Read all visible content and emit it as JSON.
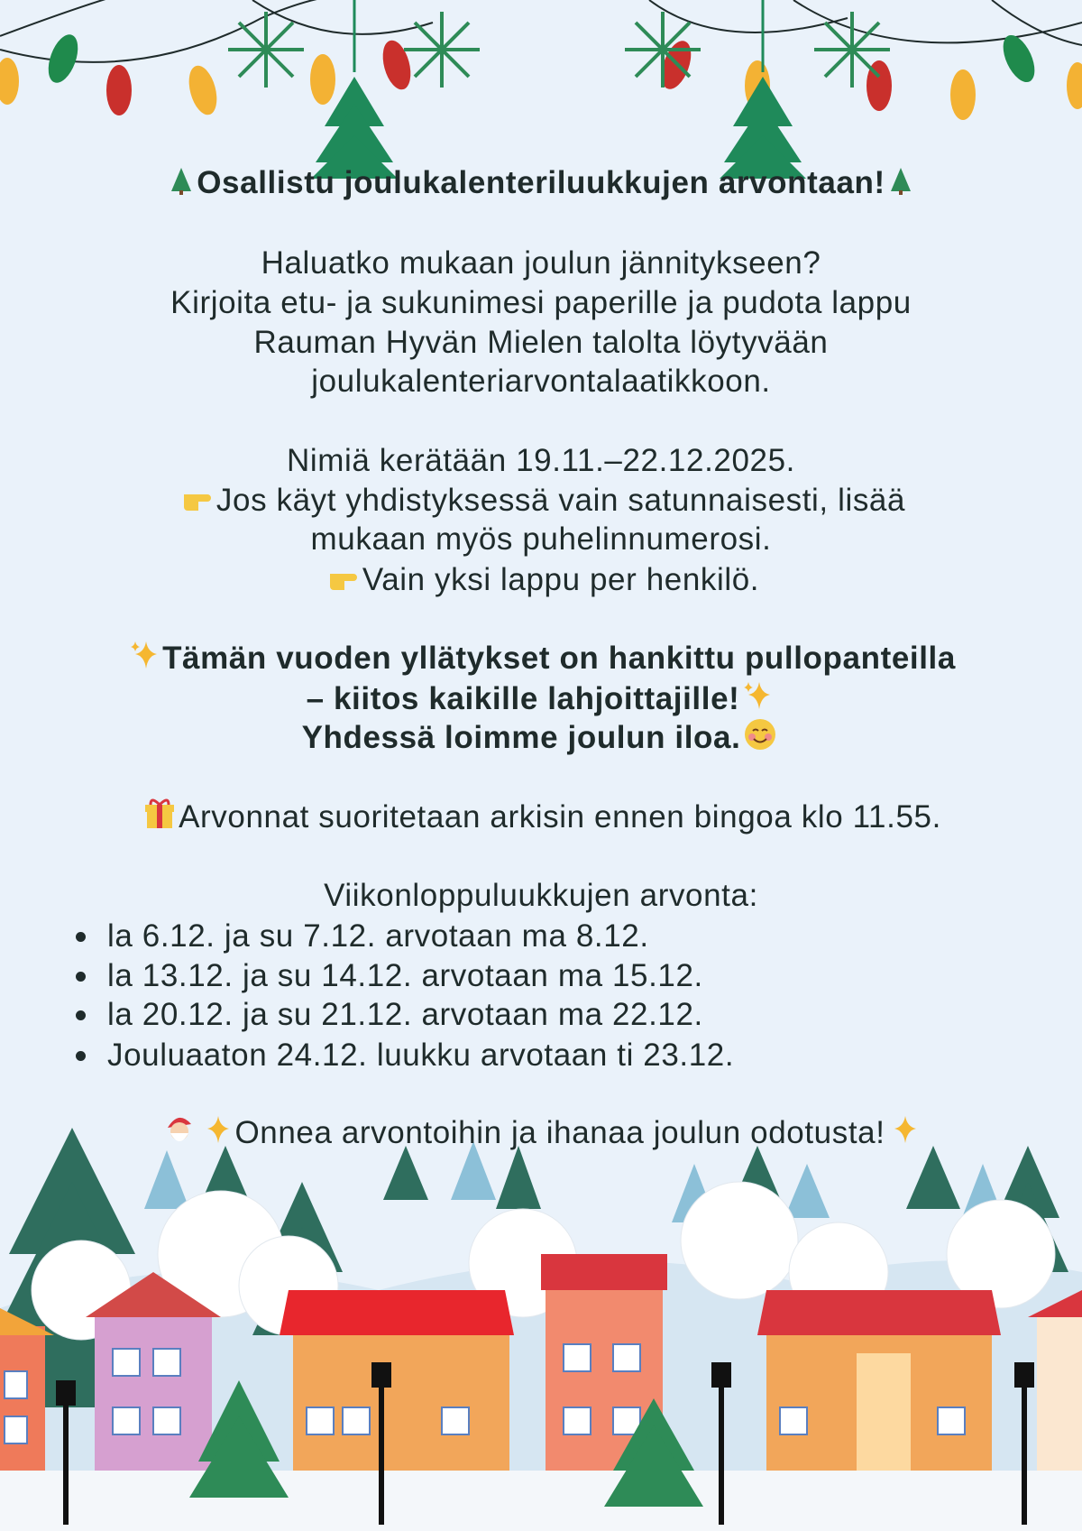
{
  "title": "Osallistu joulukalenteriluukkujen arvontaan!",
  "intro": [
    "Haluatko mukaan joulun jännitykseen?",
    "Kirjoita etu- ja sukunimesi paperille ja pudota lappu",
    "Rauman Hyvän Mielen talolta löytyvään",
    "joulukalenteriarvontalaatikkoon."
  ],
  "collection": {
    "dates": "Nimiä kerätään 19.11.–22.12.2025.",
    "note1a": "Jos käyt yhdistyksessä vain satunnaisesti, lisää",
    "note1b": "mukaan myös puhelinnumerosi.",
    "note2": "Vain yksi lappu per henkilö."
  },
  "thanks": [
    "Tämän vuoden yllätykset on hankittu pullopanteilla",
    "– kiitos kaikille lahjoittajille!",
    "Yhdessä loimme joulun iloa."
  ],
  "draw_time": "Arvonnat suoritetaan arkisin ennen bingoa klo 11.55.",
  "weekend": {
    "heading": "Viikonloppuluukkujen arvonta:",
    "items": [
      "la 6.12. ja su 7.12. arvotaan ma 8.12.",
      "la 13.12. ja su 14.12. arvotaan ma 15.12.",
      "la 20.12. ja su 21.12. arvotaan ma 22.12.",
      "Jouluaaton 24.12. luukku arvotaan ti 23.12."
    ]
  },
  "closing": "Onnea arvontoihin ja ihanaa joulun odotusta!",
  "icons": [
    "christmas-tree-icon",
    "pointing-hand-icon",
    "sparkles-icon",
    "smiling-face-icon",
    "gift-icon",
    "santa-icon"
  ],
  "colors": {
    "background": "#eaf2fa",
    "text": "#1f2b2b",
    "tree": "#2e7d5b",
    "roof": "#e0403a"
  }
}
